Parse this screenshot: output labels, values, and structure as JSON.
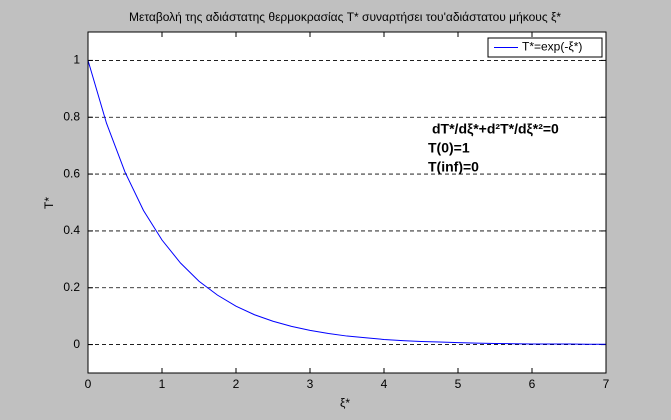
{
  "chart_data": {
    "type": "line",
    "title": "Μεταβολή της αδιάστατης θερμοκρασίας T* συναρτήσει του'αδιάστατου μήκους ξ*",
    "x_label": "ξ*",
    "y_label": "T*",
    "x": [
      0,
      0.25,
      0.5,
      0.75,
      1,
      1.25,
      1.5,
      1.75,
      2,
      2.25,
      2.5,
      2.75,
      3,
      3.25,
      3.5,
      3.75,
      4,
      4.25,
      4.5,
      4.75,
      5,
      5.25,
      5.5,
      5.75,
      6,
      6.25,
      6.5,
      6.75,
      7
    ],
    "series": [
      {
        "name": "T*=exp(-ξ*)",
        "color": "#0000ff",
        "values": [
          1,
          0.779,
          0.607,
          0.472,
          0.368,
          0.287,
          0.223,
          0.174,
          0.135,
          0.105,
          0.082,
          0.064,
          0.05,
          0.039,
          0.03,
          0.024,
          0.018,
          0.014,
          0.011,
          0.009,
          0.007,
          0.005,
          0.004,
          0.003,
          0.002,
          0.002,
          0.002,
          0.001,
          0.001
        ]
      }
    ],
    "xlim": [
      0,
      7
    ],
    "xticks": [
      0,
      1,
      2,
      3,
      4,
      5,
      6,
      7
    ],
    "ylim": [
      -0.1,
      1.1
    ],
    "yticks": [
      0,
      0.2,
      0.4,
      0.6,
      0.8,
      1
    ],
    "grid": "y",
    "legend": "upper right",
    "annotations": [
      "dT*/dξ*+d²T*/dξ*²=0",
      "T(0)=1",
      "T(inf)=0"
    ]
  }
}
